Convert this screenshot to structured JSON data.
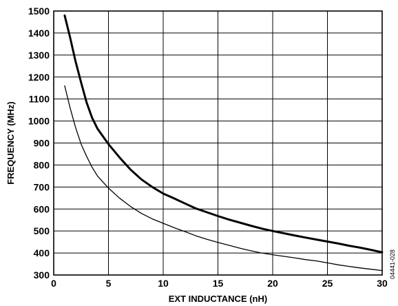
{
  "chart_data": {
    "type": "line",
    "title": "",
    "xlabel": "EXT INDUCTANCE (nH)",
    "ylabel": "FREQUENCY (MHz)",
    "xlim": [
      0,
      30
    ],
    "ylim": [
      300,
      1500
    ],
    "xticks": [
      0,
      5,
      10,
      15,
      20,
      25,
      30
    ],
    "yticks": [
      300,
      400,
      500,
      600,
      700,
      800,
      900,
      1000,
      1100,
      1200,
      1300,
      1400,
      1500
    ],
    "grid": true,
    "figure_id": "04441-028",
    "series": [
      {
        "style": "thick",
        "color": "#000000",
        "x": [
          1,
          1.5,
          2,
          2.5,
          3,
          3.5,
          4,
          5,
          6,
          7,
          8,
          9,
          10,
          11,
          12,
          13,
          14,
          15,
          16,
          17,
          18,
          19,
          20,
          21,
          22,
          23,
          24,
          25,
          26,
          27,
          28,
          29,
          30
        ],
        "y": [
          1480,
          1380,
          1270,
          1175,
          1085,
          1015,
          965,
          895,
          835,
          780,
          735,
          700,
          670,
          648,
          625,
          602,
          585,
          568,
          552,
          538,
          524,
          511,
          500,
          490,
          480,
          470,
          461,
          452,
          443,
          433,
          424,
          414,
          403
        ]
      },
      {
        "style": "thin",
        "color": "#000000",
        "x": [
          1,
          1.5,
          2,
          2.5,
          3,
          3.5,
          4,
          5,
          6,
          7,
          8,
          9,
          10,
          11,
          12,
          13,
          14,
          15,
          16,
          17,
          18,
          19,
          20,
          21,
          22,
          23,
          24,
          25,
          26,
          27,
          28,
          29,
          30
        ],
        "y": [
          1160,
          1060,
          970,
          895,
          840,
          790,
          750,
          695,
          650,
          612,
          580,
          555,
          535,
          515,
          497,
          478,
          462,
          448,
          435,
          422,
          410,
          400,
          392,
          385,
          378,
          370,
          364,
          355,
          346,
          339,
          332,
          326,
          320
        ]
      }
    ]
  }
}
